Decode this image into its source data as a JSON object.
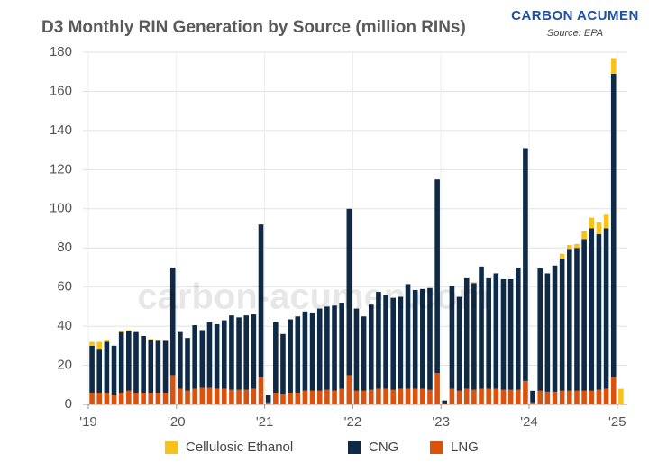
{
  "chart_data": {
    "type": "stacked_bar",
    "title": "D3 Monthly RIN Generation by Source (million RINs)",
    "brand": "CARBON ACUMEN",
    "source": "Source: EPA",
    "watermark": "carbon-acumen.com",
    "categories": [
      "'19",
      null,
      null,
      null,
      null,
      null,
      null,
      null,
      null,
      null,
      null,
      null,
      "'20",
      null,
      null,
      null,
      null,
      null,
      null,
      null,
      null,
      null,
      null,
      null,
      "'21",
      null,
      null,
      null,
      null,
      null,
      null,
      null,
      null,
      null,
      null,
      null,
      "'22",
      null,
      null,
      null,
      null,
      null,
      null,
      null,
      null,
      null,
      null,
      null,
      "'23",
      null,
      null,
      null,
      null,
      null,
      null,
      null,
      null,
      null,
      null,
      null,
      "'24",
      null,
      null,
      null,
      null,
      null,
      null,
      null,
      null,
      null,
      null,
      null,
      "'25"
    ],
    "series": [
      {
        "name": "Cellulosic Ethanol",
        "color": "#f9c21b",
        "values": [
          2,
          4,
          1,
          0,
          0.5,
          0.5,
          0,
          0,
          0.5,
          0.5,
          0,
          0,
          0,
          0,
          0,
          0,
          0,
          0,
          0,
          0,
          0,
          0,
          0,
          0,
          0,
          0,
          0,
          0,
          0,
          0,
          0,
          0,
          0,
          0,
          0,
          0,
          0,
          0,
          0,
          0,
          0,
          0,
          0,
          0,
          0,
          0,
          0,
          0,
          0,
          0,
          0,
          0,
          0.5,
          0,
          0,
          0,
          0,
          0,
          0,
          0,
          0,
          0,
          0,
          0,
          2.5,
          2,
          2,
          4,
          5.5,
          6,
          7,
          8,
          8
        ]
      },
      {
        "name": "CNG",
        "color": "#0e2a47",
        "values": [
          24,
          22,
          26,
          25,
          31,
          30.5,
          31,
          29,
          27,
          26.5,
          26.5,
          55,
          29,
          27,
          32.5,
          29.5,
          33.5,
          33,
          35,
          38,
          37,
          38,
          38,
          78,
          4,
          36,
          30.5,
          37.5,
          39,
          40.5,
          40,
          42,
          42.5,
          43.5,
          44,
          85,
          42,
          38,
          43.5,
          49.5,
          48,
          47,
          47,
          53.5,
          50.5,
          51,
          52,
          99,
          1.5,
          52.5,
          48,
          56.5,
          54.5,
          62.5,
          56.5,
          59,
          56.5,
          56.5,
          62.5,
          119,
          6,
          62.5,
          60.5,
          64.5,
          67.5,
          72.5,
          73,
          77.5,
          83,
          79.5,
          82,
          155,
          0
        ]
      },
      {
        "name": "LNG",
        "color": "#d9530f",
        "values": [
          6,
          6,
          6,
          5,
          6,
          7,
          6,
          6,
          6,
          6,
          6,
          15,
          8,
          7,
          8,
          8.5,
          8.5,
          8,
          8,
          7.5,
          7.5,
          7.5,
          8,
          14,
          1,
          6,
          5.5,
          6,
          6,
          7,
          7,
          7,
          7.5,
          7,
          8,
          15,
          7,
          7,
          7.5,
          8,
          8,
          7.5,
          8,
          8,
          8,
          8,
          7.5,
          16,
          0.5,
          8,
          7,
          8,
          7.5,
          8,
          8,
          8,
          7.5,
          7.5,
          7.5,
          12,
          1,
          7,
          6.5,
          6.5,
          7,
          7,
          7,
          7,
          7,
          7.5,
          8,
          14,
          0
        ]
      }
    ],
    "ylim": [
      0,
      180
    ],
    "yticks": [
      0,
      20,
      40,
      60,
      80,
      100,
      120,
      140,
      160,
      180
    ],
    "grid": true,
    "legend": "bottom"
  }
}
